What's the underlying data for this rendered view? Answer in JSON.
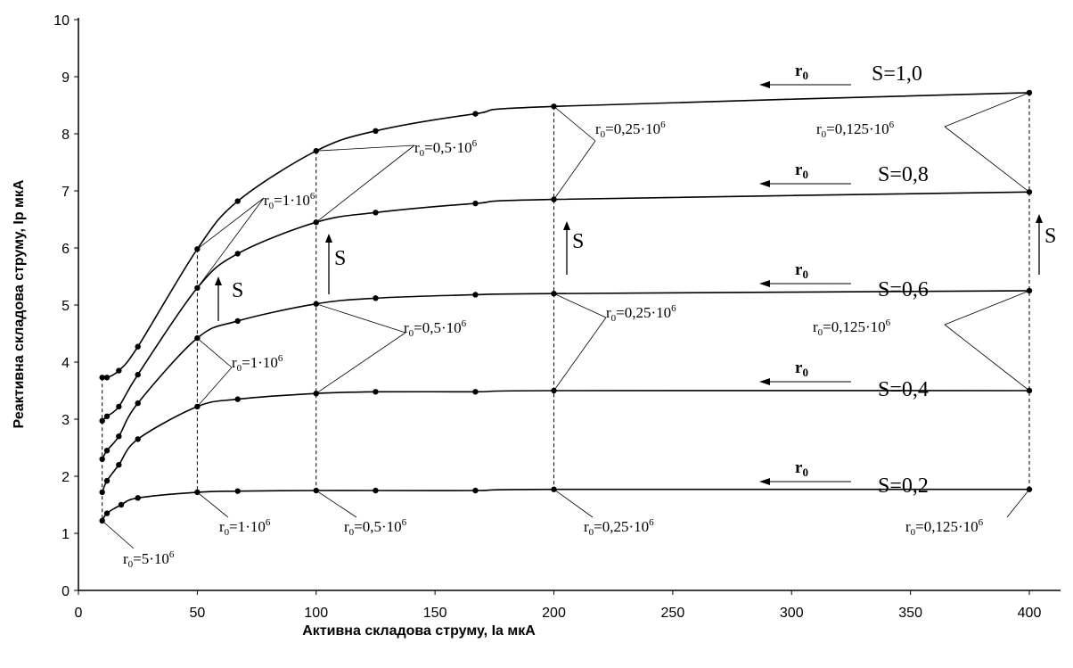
{
  "chart_data": {
    "type": "line",
    "title": "",
    "xlabel": "Активна складова струму, Іа мкА",
    "ylabel": "Реактивна складова струму, Ір мкА",
    "xlim": [
      0,
      400
    ],
    "ylim": [
      0,
      10
    ],
    "x_ticks": [
      "0",
      "50",
      "100",
      "150",
      "200",
      "250",
      "300",
      "350",
      "400"
    ],
    "y_ticks": [
      "0",
      "1",
      "2",
      "3",
      "4",
      "5",
      "6",
      "7",
      "8",
      "9",
      "10"
    ],
    "grid": false,
    "legend": "none",
    "series": [
      {
        "name": "S=0,2",
        "x": [
          10,
          12,
          18,
          25,
          50,
          67,
          100,
          125,
          167,
          200,
          400
        ],
        "y": [
          1.22,
          1.35,
          1.5,
          1.62,
          1.72,
          1.74,
          1.75,
          1.75,
          1.75,
          1.77,
          1.77
        ]
      },
      {
        "name": "S=0,4",
        "x": [
          10,
          12,
          17,
          25,
          50,
          67,
          100,
          125,
          167,
          200,
          400
        ],
        "y": [
          1.72,
          1.92,
          2.2,
          2.65,
          3.22,
          3.35,
          3.45,
          3.48,
          3.48,
          3.5,
          3.5
        ]
      },
      {
        "name": "S=0,6",
        "x": [
          10,
          12,
          17,
          25,
          50,
          67,
          100,
          125,
          167,
          200,
          400
        ],
        "y": [
          2.3,
          2.45,
          2.7,
          3.28,
          4.42,
          4.72,
          5.02,
          5.12,
          5.18,
          5.2,
          5.25
        ]
      },
      {
        "name": "S=0,8",
        "x": [
          10,
          12,
          17,
          25,
          50,
          67,
          100,
          125,
          167,
          200,
          400
        ],
        "y": [
          2.97,
          3.05,
          3.22,
          3.78,
          5.3,
          5.9,
          6.45,
          6.62,
          6.78,
          6.85,
          6.98
        ]
      },
      {
        "name": "S=1,0",
        "x": [
          10,
          12,
          17,
          25,
          50,
          67,
          100,
          125,
          167,
          200,
          400
        ],
        "y": [
          3.73,
          3.73,
          3.85,
          4.27,
          5.98,
          6.82,
          7.7,
          8.05,
          8.35,
          8.48,
          8.72
        ]
      }
    ],
    "annotations": {
      "r0_points": [
        {
          "base": "r",
          "sub": "0",
          "rest": "=5·10",
          "exp": "6"
        },
        {
          "base": "r",
          "sub": "0",
          "rest": "=1·10",
          "exp": "6"
        },
        {
          "base": "r",
          "sub": "0",
          "rest": "=0,5·10",
          "exp": "6"
        },
        {
          "base": "r",
          "sub": "0",
          "rest": "=0,25·10",
          "exp": "6"
        },
        {
          "base": "r",
          "sub": "0",
          "rest": "=0,125·10",
          "exp": "6"
        },
        {
          "base": "r",
          "sub": "0",
          "rest": "=1·10",
          "exp": "6"
        },
        {
          "base": "r",
          "sub": "0",
          "rest": "=0,5·10",
          "exp": "6"
        },
        {
          "base": "r",
          "sub": "0",
          "rest": "=0,25·10",
          "exp": "6"
        },
        {
          "base": "r",
          "sub": "0",
          "rest": "=0,125·10",
          "exp": "6"
        },
        {
          "base": "r",
          "sub": "0",
          "rest": "=1·10",
          "exp": "6"
        },
        {
          "base": "r",
          "sub": "0",
          "rest": "=0,5·10",
          "exp": "6"
        },
        {
          "base": "r",
          "sub": "0",
          "rest": "=0,25·10",
          "exp": "6"
        },
        {
          "base": "r",
          "sub": "0",
          "rest": "=0,125·10",
          "exp": "6"
        }
      ],
      "series_labels": [
        "S=0,2",
        "S=0,4",
        "S=0,6",
        "S=0,8",
        "S=1,0"
      ],
      "r0_arrow_label": {
        "base": "r",
        "sub": "0"
      },
      "s_arrow_label": "S"
    }
  }
}
